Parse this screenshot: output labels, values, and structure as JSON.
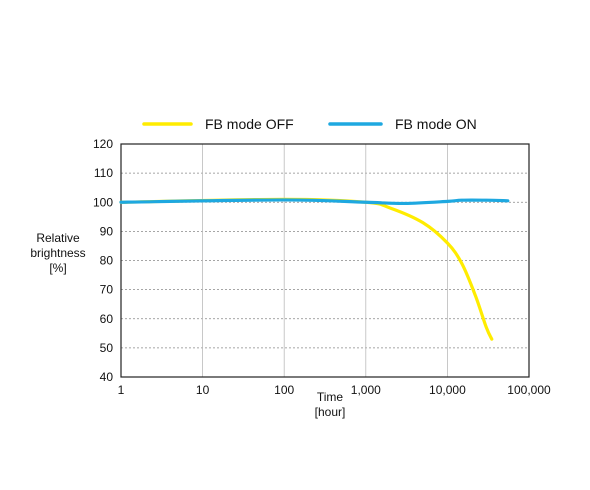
{
  "chart_data": {
    "type": "line",
    "x_scale": "log",
    "xlim": [
      1,
      100000
    ],
    "ylim": [
      40,
      120
    ],
    "x_ticks": [
      "1",
      "10",
      "100",
      "1,000",
      "10,000",
      "100,000"
    ],
    "y_ticks": [
      "40",
      "50",
      "60",
      "70",
      "80",
      "90",
      "100",
      "110",
      "120"
    ],
    "xlabel_lines": [
      "Time",
      "[hour]"
    ],
    "ylabel_lines": [
      "Relative",
      "brightness",
      "[%]"
    ],
    "legend_position": "top",
    "grid": true,
    "series": [
      {
        "name": "FB mode OFF",
        "color": "#ffec00",
        "points": [
          {
            "x": 1,
            "y": 100
          },
          {
            "x": 100,
            "y": 101
          },
          {
            "x": 1000,
            "y": 100
          },
          {
            "x": 2000,
            "y": 98
          },
          {
            "x": 5000,
            "y": 93
          },
          {
            "x": 10000,
            "y": 86
          },
          {
            "x": 15000,
            "y": 79
          },
          {
            "x": 22000,
            "y": 68
          },
          {
            "x": 30000,
            "y": 57
          },
          {
            "x": 35000,
            "y": 53
          }
        ]
      },
      {
        "name": "FB mode ON",
        "color": "#1ea8e0",
        "points": [
          {
            "x": 1,
            "y": 100
          },
          {
            "x": 100,
            "y": 100.8
          },
          {
            "x": 1000,
            "y": 100
          },
          {
            "x": 3000,
            "y": 99.6
          },
          {
            "x": 10000,
            "y": 100.3
          },
          {
            "x": 15000,
            "y": 100.7
          },
          {
            "x": 30000,
            "y": 100.7
          },
          {
            "x": 55000,
            "y": 100.5
          }
        ]
      }
    ]
  }
}
